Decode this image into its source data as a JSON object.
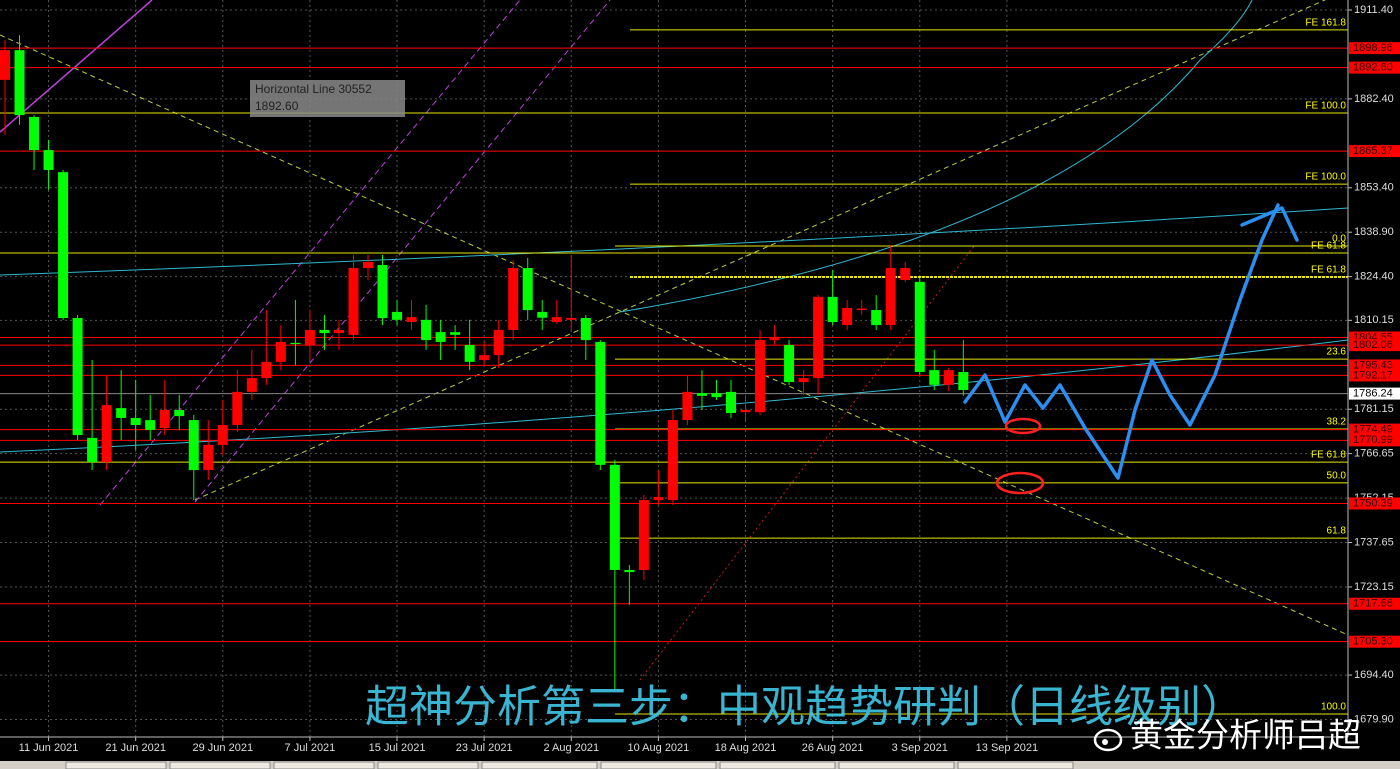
{
  "chart_data": {
    "type": "candlestick",
    "categories": [
      null,
      null,
      null,
      "11 Jun 2021",
      null,
      null,
      null,
      null,
      null,
      "21 Jun 2021",
      null,
      null,
      null,
      null,
      null,
      "29 Jun 2021",
      null,
      null,
      null,
      null,
      null,
      "7 Jul 2021",
      null,
      null,
      null,
      null,
      null,
      "15 Jul 2021",
      null,
      null,
      null,
      null,
      null,
      "23 Jul 2021",
      null,
      null,
      null,
      null,
      null,
      "2 Aug 2021",
      null,
      null,
      null,
      null,
      null,
      "10 Aug 2021",
      null,
      null,
      null,
      null,
      null,
      "18 Aug 2021",
      null,
      null,
      null,
      null,
      null,
      "26 Aug 2021",
      null,
      null,
      null,
      null,
      null,
      "3 Sep 2021",
      null,
      null,
      null,
      null,
      null,
      "13 Sep 2021"
    ],
    "open": [
      1888.6,
      1898.3,
      1876.5,
      1865.7,
      1858.5,
      1810.9,
      1771.8,
      1763.9,
      1781.5,
      1778.3,
      1777.6,
      1775.0,
      1780.9,
      1777.6,
      1761.3,
      1769.5,
      1776.0,
      1786.8,
      1791.3,
      1796.6,
      1802.8,
      1802.1,
      1807.0,
      1806.0,
      1805.4,
      1827.2,
      1828.2,
      1812.9,
      1809.6,
      1810.3,
      1806.3,
      1806.3,
      1802.1,
      1797.2,
      1798.8,
      1807.0,
      1827.2,
      1812.9,
      1809.6,
      1810.3,
      1810.9,
      1803.1,
      1763.0,
      1728.7,
      1728.7,
      1751.5,
      1751.5,
      1777.6,
      1786.4,
      1786.4,
      1786.8,
      1780.2,
      1780.2,
      1803.7,
      1802.1,
      1790.0,
      1791.3,
      1817.8,
      1808.6,
      1813.5,
      1813.5,
      1808.6,
      1823.3,
      1822.7,
      1793.9,
      1789.1,
      1793.3,
      null,
      null,
      null
    ],
    "high": [
      1901.6,
      1903.2,
      1877.1,
      1869.0,
      1859.2,
      1811.9,
      1797.2,
      1792.3,
      1793.9,
      1790.7,
      1785.8,
      1790.7,
      1785.8,
      1779.3,
      1777.6,
      1784.2,
      1793.9,
      1800.5,
      1813.5,
      1808.6,
      1816.8,
      1813.5,
      1811.9,
      1810.3,
      1831.5,
      1831.5,
      1831.5,
      1816.8,
      1816.8,
      1815.2,
      1810.3,
      1808.6,
      1810.3,
      1803.1,
      1810.3,
      1829.8,
      1830.5,
      1816.8,
      1816.8,
      1831.5,
      1811.9,
      1803.7,
      1764.6,
      1730.3,
      1753.2,
      1761.3,
      1780.9,
      1792.3,
      1793.9,
      1790.7,
      1790.7,
      1785.8,
      1807.0,
      1808.6,
      1803.7,
      1793.9,
      1818.4,
      1826.6,
      1816.8,
      1816.8,
      1818.4,
      1834.7,
      1829.2,
      1824.0,
      1800.5,
      1794.6,
      1803.7,
      null,
      null,
      null
    ],
    "low": [
      1870.6,
      1873.9,
      1859.2,
      1852.7,
      1810.3,
      1771.1,
      1761.3,
      1761.3,
      1771.1,
      1767.8,
      1771.1,
      1772.7,
      1774.4,
      1751.5,
      1758.1,
      1766.2,
      1773.7,
      1784.2,
      1789.1,
      1793.9,
      1795.6,
      1797.2,
      1800.5,
      1800.5,
      1803.7,
      1823.3,
      1808.6,
      1808.6,
      1807.0,
      1800.5,
      1797.2,
      1800.5,
      1793.9,
      1795.6,
      1794.6,
      1803.7,
      1810.3,
      1807.0,
      1809.0,
      1807.0,
      1797.2,
      1761.3,
      1689.5,
      1717.3,
      1725.4,
      1749.9,
      1749.9,
      1776.0,
      1780.9,
      1784.2,
      1778.3,
      1777.6,
      1779.3,
      1802.1,
      1789.1,
      1785.8,
      1785.8,
      1808.6,
      1807.0,
      1812.0,
      1807.0,
      1807.0,
      1822.7,
      1792.3,
      1787.4,
      1787.0,
      1785.5,
      null,
      null,
      null
    ],
    "close": [
      1898.3,
      1877.1,
      1865.7,
      1859.2,
      1810.9,
      1772.7,
      1763.9,
      1782.5,
      1778.3,
      1776.0,
      1774.4,
      1780.9,
      1778.9,
      1761.3,
      1769.5,
      1776.0,
      1786.8,
      1791.3,
      1796.6,
      1803.1,
      1802.4,
      1807.0,
      1806.0,
      1807.0,
      1827.2,
      1829.2,
      1810.9,
      1810.3,
      1811.2,
      1803.7,
      1803.1,
      1805.4,
      1796.6,
      1798.8,
      1807.0,
      1827.2,
      1813.5,
      1811.0,
      1811.2,
      1810.9,
      1803.7,
      1763.0,
      1728.7,
      1728.0,
      1751.5,
      1752.5,
      1777.6,
      1786.8,
      1785.5,
      1785.1,
      1779.9,
      1780.9,
      1803.7,
      1804.4,
      1790.0,
      1791.3,
      1817.8,
      1809.6,
      1814.2,
      1814.0,
      1808.6,
      1827.2,
      1827.2,
      1793.3,
      1789.1,
      1793.9,
      1787.4,
      null,
      null,
      null
    ],
    "up_color": "#ff0000",
    "down_color": "#00ff00",
    "ylim": [
      1674.2,
      1914.66
    ],
    "yticks": [
      {
        "value": 1911.4,
        "label": "1911.40"
      },
      {
        "value": 1882.4,
        "label": "1882.40"
      },
      {
        "value": 1853.4,
        "label": "1853.40"
      },
      {
        "value": 1838.9,
        "label": "1838.90"
      },
      {
        "value": 1824.4,
        "label": "1824.40"
      },
      1810.15,
      1781.15,
      1766.65,
      1752.15,
      1737.65,
      1723.15,
      {
        "value": 1694.4,
        "label": "1694.40"
      },
      {
        "value": 1679.9,
        "label": "1679.90"
      }
    ],
    "grid": true,
    "levels": {
      "color": "#ff0000",
      "values": [
        1898.96,
        1892.6,
        1865.37,
        1804.55,
        1802.06,
        1795.43,
        1792.17,
        1774.49,
        1770.99,
        1750.39,
        1717.68,
        1705.3
      ],
      "value_labels": [
        "1898.96",
        "1892.60",
        "1865.37",
        "1804.55",
        "1802.06",
        "1795.43",
        "1792.17",
        "1774.49",
        "1770.99",
        "1750.39",
        "1717.68",
        "1705.30"
      ]
    },
    "fib_levels": {
      "color": "#ffff00",
      "values": [
        1904.9,
        1877.8,
        1854.6,
        1834.4,
        1832.1,
        1824.3,
        1797.5,
        1774.7,
        1763.9,
        1757.1,
        1739.1,
        1681.7
      ],
      "labels": [
        "FE 161.8",
        "FE 100.0",
        "FE 100.0",
        "0.0",
        "FE 61.8",
        "FE 61.8",
        "23.6",
        "38.2",
        "FE 61.8",
        "50.0",
        "61.8",
        "100.0"
      ]
    },
    "current_price": 1786.24,
    "tooltip": {
      "title": "Horizontal Line 30552",
      "value": "1892.60"
    },
    "caption": "超神分析第三步：中观趋势研判（日线级别）",
    "watermark": "黄金分析师吕超"
  }
}
